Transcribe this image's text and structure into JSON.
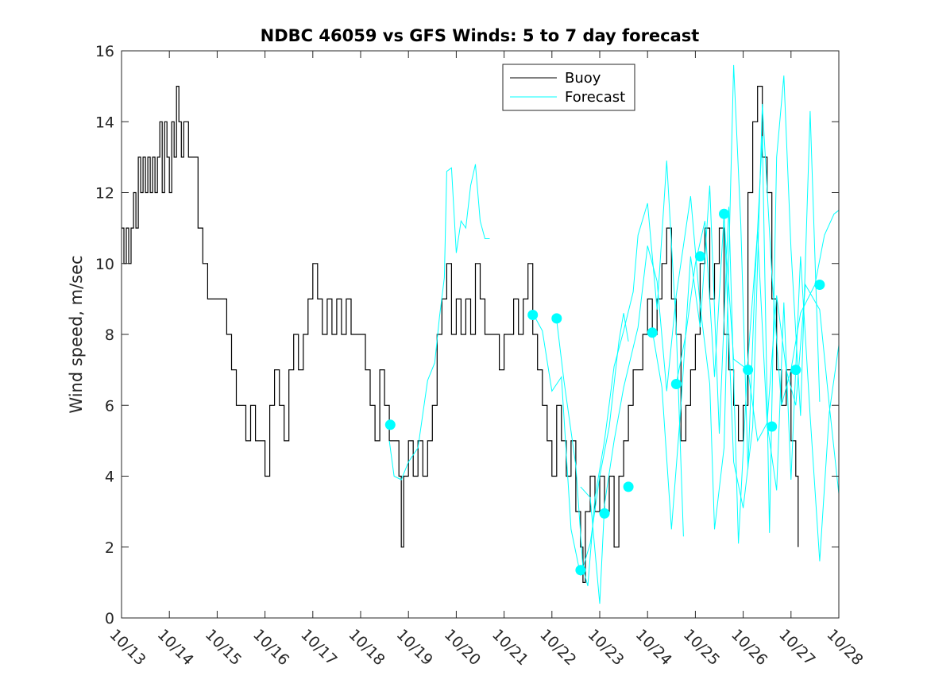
{
  "chart_data": {
    "type": "line",
    "title": "NDBC 46059 vs GFS Winds: 5 to 7 day forecast",
    "xlabel": "",
    "ylabel": "Wind speed, m/sec",
    "xlim": [
      0,
      15
    ],
    "ylim": [
      0,
      16
    ],
    "x_tick_values": [
      0,
      1,
      2,
      3,
      4,
      5,
      6,
      7,
      8,
      9,
      10,
      11,
      12,
      13,
      14,
      15
    ],
    "x_tick_labels": [
      "10/13",
      "10/14",
      "10/15",
      "10/16",
      "10/17",
      "10/18",
      "10/19",
      "10/20",
      "10/21",
      "10/22",
      "10/23",
      "10/24",
      "10/25",
      "10/26",
      "10/27",
      "10/28"
    ],
    "y_ticks": [
      0,
      2,
      4,
      6,
      8,
      10,
      12,
      14,
      16
    ],
    "x_units": "days since 10/13",
    "legend": {
      "placement": "top-right",
      "entries": [
        {
          "name": "Buoy",
          "color": "#000000"
        },
        {
          "name": "Forecast",
          "color": "#00ffff"
        }
      ]
    },
    "series": [
      {
        "name": "Buoy",
        "color": "#000000",
        "points": [
          [
            0,
            11
          ],
          [
            0.05,
            10
          ],
          [
            0.1,
            11
          ],
          [
            0.15,
            10
          ],
          [
            0.2,
            11
          ],
          [
            0.25,
            12
          ],
          [
            0.3,
            11
          ],
          [
            0.35,
            13
          ],
          [
            0.4,
            12
          ],
          [
            0.45,
            13
          ],
          [
            0.5,
            12
          ],
          [
            0.55,
            13
          ],
          [
            0.6,
            12
          ],
          [
            0.65,
            13
          ],
          [
            0.7,
            12
          ],
          [
            0.75,
            13
          ],
          [
            0.8,
            14
          ],
          [
            0.85,
            12
          ],
          [
            0.9,
            14
          ],
          [
            0.95,
            13
          ],
          [
            1.0,
            12
          ],
          [
            1.05,
            14
          ],
          [
            1.1,
            13
          ],
          [
            1.15,
            15
          ],
          [
            1.2,
            14
          ],
          [
            1.25,
            13
          ],
          [
            1.3,
            14
          ],
          [
            1.4,
            13
          ],
          [
            1.5,
            13
          ],
          [
            1.6,
            11
          ],
          [
            1.7,
            10
          ],
          [
            1.8,
            9
          ],
          [
            2.0,
            9
          ],
          [
            2.2,
            8
          ],
          [
            2.3,
            7
          ],
          [
            2.4,
            6
          ],
          [
            2.5,
            6
          ],
          [
            2.6,
            5
          ],
          [
            2.7,
            6
          ],
          [
            2.8,
            5
          ],
          [
            2.9,
            5
          ],
          [
            3.0,
            4
          ],
          [
            3.1,
            6
          ],
          [
            3.2,
            7
          ],
          [
            3.3,
            6
          ],
          [
            3.4,
            5
          ],
          [
            3.5,
            7
          ],
          [
            3.6,
            8
          ],
          [
            3.7,
            7
          ],
          [
            3.8,
            8
          ],
          [
            3.9,
            9
          ],
          [
            4.0,
            10
          ],
          [
            4.1,
            9
          ],
          [
            4.2,
            8
          ],
          [
            4.3,
            9
          ],
          [
            4.4,
            8
          ],
          [
            4.5,
            9
          ],
          [
            4.6,
            8
          ],
          [
            4.7,
            9
          ],
          [
            4.8,
            8
          ],
          [
            5.0,
            8
          ],
          [
            5.1,
            7
          ],
          [
            5.2,
            6
          ],
          [
            5.3,
            5
          ],
          [
            5.4,
            7
          ],
          [
            5.5,
            6
          ],
          [
            5.6,
            5
          ],
          [
            5.7,
            5
          ],
          [
            5.8,
            4
          ],
          [
            5.85,
            2
          ],
          [
            5.9,
            4
          ],
          [
            6.0,
            5
          ],
          [
            6.1,
            4
          ],
          [
            6.2,
            5
          ],
          [
            6.3,
            4
          ],
          [
            6.4,
            5
          ],
          [
            6.5,
            6
          ],
          [
            6.6,
            8
          ],
          [
            6.7,
            9
          ],
          [
            6.8,
            10
          ],
          [
            6.9,
            8
          ],
          [
            7.0,
            9
          ],
          [
            7.1,
            8
          ],
          [
            7.2,
            9
          ],
          [
            7.3,
            8
          ],
          [
            7.4,
            10
          ],
          [
            7.5,
            9
          ],
          [
            7.6,
            8
          ],
          [
            7.8,
            8
          ],
          [
            7.9,
            7
          ],
          [
            8.0,
            8
          ],
          [
            8.1,
            8
          ],
          [
            8.2,
            9
          ],
          [
            8.3,
            8
          ],
          [
            8.4,
            9
          ],
          [
            8.5,
            10
          ],
          [
            8.6,
            8
          ],
          [
            8.7,
            7
          ],
          [
            8.8,
            6
          ],
          [
            8.9,
            5
          ],
          [
            9.0,
            4
          ],
          [
            9.1,
            6
          ],
          [
            9.2,
            5
          ],
          [
            9.3,
            4
          ],
          [
            9.4,
            5
          ],
          [
            9.5,
            3
          ],
          [
            9.6,
            2
          ],
          [
            9.65,
            1
          ],
          [
            9.7,
            3
          ],
          [
            9.8,
            4
          ],
          [
            9.9,
            3
          ],
          [
            10.0,
            4
          ],
          [
            10.1,
            3
          ],
          [
            10.2,
            4
          ],
          [
            10.3,
            2
          ],
          [
            10.4,
            4
          ],
          [
            10.5,
            5
          ],
          [
            10.6,
            6
          ],
          [
            10.7,
            7
          ],
          [
            10.8,
            7
          ],
          [
            10.9,
            8
          ],
          [
            11.0,
            9
          ],
          [
            11.1,
            8
          ],
          [
            11.2,
            9
          ],
          [
            11.3,
            10
          ],
          [
            11.4,
            11
          ],
          [
            11.5,
            9
          ],
          [
            11.6,
            8
          ],
          [
            11.7,
            5
          ],
          [
            11.8,
            6
          ],
          [
            11.9,
            7
          ],
          [
            12.0,
            8
          ],
          [
            12.1,
            10
          ],
          [
            12.2,
            11
          ],
          [
            12.3,
            9
          ],
          [
            12.4,
            10
          ],
          [
            12.5,
            11
          ],
          [
            12.6,
            8
          ],
          [
            12.7,
            7
          ],
          [
            12.8,
            6
          ],
          [
            12.9,
            5
          ],
          [
            13.0,
            6
          ],
          [
            13.1,
            12
          ],
          [
            13.2,
            14
          ],
          [
            13.3,
            15
          ],
          [
            13.4,
            13
          ],
          [
            13.5,
            12
          ],
          [
            13.6,
            9
          ],
          [
            13.7,
            7
          ],
          [
            13.8,
            6
          ],
          [
            13.9,
            7
          ],
          [
            14.0,
            5
          ],
          [
            14.1,
            4
          ],
          [
            14.15,
            2
          ]
        ]
      },
      {
        "name": "Forecast",
        "color": "#00ffff",
        "lines": [
          [
            [
              5.6,
              5
            ],
            [
              5.7,
              4
            ],
            [
              5.85,
              3.9
            ],
            [
              6.0,
              4.4
            ],
            [
              6.2,
              4.8
            ],
            [
              6.4,
              6.7
            ],
            [
              6.55,
              7.2
            ],
            [
              6.65,
              8.5
            ],
            [
              6.75,
              9.6
            ],
            [
              6.8,
              12.6
            ],
            [
              6.9,
              12.7
            ],
            [
              7.0,
              10.3
            ],
            [
              7.1,
              11.2
            ],
            [
              7.2,
              11.0
            ],
            [
              7.3,
              12.2
            ],
            [
              7.4,
              12.8
            ],
            [
              7.5,
              11.2
            ],
            [
              7.6,
              10.7
            ],
            [
              7.7,
              10.7
            ]
          ],
          [
            [
              8.6,
              8.6
            ],
            [
              8.8,
              8.1
            ],
            [
              9.0,
              6.4
            ],
            [
              9.2,
              6.8
            ],
            [
              9.4,
              2.5
            ],
            [
              9.6,
              1.2
            ],
            [
              9.8,
              2.1
            ],
            [
              10.0,
              4.0
            ],
            [
              10.2,
              5.4
            ],
            [
              10.4,
              7.8
            ],
            [
              10.5,
              8.6
            ],
            [
              10.6,
              7.8
            ]
          ],
          [
            [
              9.1,
              8.4
            ],
            [
              9.25,
              6.7
            ],
            [
              9.5,
              4.3
            ],
            [
              9.65,
              1.4
            ],
            [
              9.75,
              0.9
            ],
            [
              9.9,
              3.4
            ],
            [
              10.0,
              4.2
            ],
            [
              10.1,
              5.0
            ],
            [
              10.3,
              7.1
            ],
            [
              10.5,
              8.1
            ],
            [
              10.7,
              9.2
            ],
            [
              10.8,
              10.8
            ],
            [
              11.0,
              11.7
            ],
            [
              11.2,
              8.7
            ],
            [
              11.4,
              12.9
            ],
            [
              11.6,
              8.2
            ],
            [
              11.75,
              2.3
            ]
          ],
          [
            [
              9.6,
              3.7
            ],
            [
              9.8,
              3.4
            ],
            [
              10.0,
              0.4
            ],
            [
              10.1,
              3.2
            ],
            [
              10.3,
              5.0
            ],
            [
              10.5,
              6.5
            ],
            [
              10.8,
              8.2
            ],
            [
              11.0,
              10.5
            ],
            [
              11.2,
              9.5
            ],
            [
              11.4,
              6.4
            ],
            [
              11.6,
              9.1
            ],
            [
              11.9,
              11.9
            ],
            [
              12.1,
              8.8
            ],
            [
              12.3,
              6.6
            ],
            [
              12.4,
              2.5
            ],
            [
              12.6,
              4.8
            ],
            [
              12.8,
              15.6
            ],
            [
              12.95,
              11.1
            ],
            [
              13.1,
              4.2
            ],
            [
              13.25,
              9.6
            ],
            [
              13.4,
              13.6
            ],
            [
              13.55,
              2.4
            ],
            [
              13.7,
              13.0
            ],
            [
              13.85,
              15.3
            ],
            [
              14.0,
              10.4
            ],
            [
              14.2,
              5.7
            ],
            [
              14.4,
              14.3
            ],
            [
              14.6,
              6.1
            ]
          ],
          [
            [
              11.1,
              8.1
            ],
            [
              11.3,
              6.5
            ],
            [
              11.5,
              2.5
            ],
            [
              11.7,
              6.0
            ],
            [
              11.9,
              10.2
            ],
            [
              12.1,
              8.2
            ],
            [
              12.3,
              12.2
            ],
            [
              12.5,
              5.2
            ],
            [
              12.7,
              11.6
            ],
            [
              12.9,
              2.1
            ],
            [
              13.1,
              7.3
            ],
            [
              13.3,
              10.9
            ],
            [
              13.5,
              5.5
            ],
            [
              13.7,
              3.6
            ],
            [
              13.85,
              8.9
            ],
            [
              14.0,
              3.9
            ],
            [
              14.2,
              10.2
            ],
            [
              14.4,
              5.7
            ],
            [
              14.6,
              1.6
            ],
            [
              14.8,
              5.8
            ],
            [
              15.0,
              7.7
            ]
          ],
          [
            [
              11.6,
              6.6
            ],
            [
              11.8,
              8.0
            ],
            [
              12.0,
              10.0
            ],
            [
              12.2,
              11.2
            ],
            [
              12.4,
              6.8
            ],
            [
              12.6,
              11.4
            ],
            [
              12.8,
              4.4
            ],
            [
              13.0,
              3.1
            ],
            [
              13.2,
              5.4
            ],
            [
              13.4,
              14.5
            ],
            [
              13.6,
              9.7
            ],
            [
              13.8,
              6.0
            ],
            [
              14.0,
              7.0
            ],
            [
              14.2,
              8.6
            ],
            [
              14.5,
              9.4
            ],
            [
              14.7,
              10.8
            ],
            [
              14.9,
              11.4
            ],
            [
              15.0,
              11.5
            ]
          ],
          [
            [
              12.6,
              11.3
            ],
            [
              12.8,
              7.3
            ],
            [
              13.1,
              7.0
            ],
            [
              13.3,
              5.0
            ],
            [
              13.5,
              5.5
            ],
            [
              13.7,
              9.1
            ],
            [
              13.9,
              7.0
            ],
            [
              14.1,
              6.0
            ],
            [
              14.3,
              9.4
            ],
            [
              14.6,
              8.7
            ],
            [
              14.8,
              6.0
            ],
            [
              15.0,
              3.5
            ]
          ]
        ],
        "markers": [
          [
            5.62,
            5.45
          ],
          [
            8.6,
            8.55
          ],
          [
            9.1,
            8.45
          ],
          [
            9.6,
            1.35
          ],
          [
            10.1,
            2.95
          ],
          [
            10.6,
            3.7
          ],
          [
            11.1,
            8.05
          ],
          [
            11.6,
            6.6
          ],
          [
            12.1,
            10.2
          ],
          [
            12.6,
            11.4
          ],
          [
            13.1,
            7.0
          ],
          [
            13.6,
            5.4
          ],
          [
            14.1,
            7.0
          ],
          [
            14.6,
            9.4
          ]
        ]
      }
    ]
  }
}
